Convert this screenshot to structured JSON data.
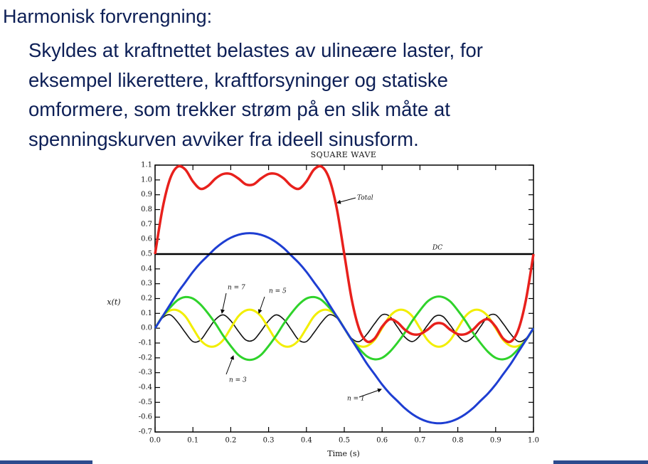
{
  "slide": {
    "title": "Harmonisk forvrengning:",
    "body": [
      "Skyldes at kraftnettet belastes av ulineære laster, for",
      "eksempel likerettere, kraftforsyninger og statiske",
      "omformere, som trekker strøm på en slik måte at",
      "spenningskurven avviker fra ideell sinusform."
    ]
  },
  "chart_data": {
    "type": "line",
    "title": "SQUARE WAVE",
    "x_label": "Time (s)",
    "y_label": "x(t)",
    "x": [
      0,
      0.02,
      0.04,
      0.06,
      0.08,
      0.1,
      0.12,
      0.14,
      0.16,
      0.18,
      0.2,
      0.22,
      0.24,
      0.26,
      0.28,
      0.3,
      0.32,
      0.34,
      0.36,
      0.38,
      0.4,
      0.42,
      0.44,
      0.46,
      0.48,
      0.5,
      0.52,
      0.54,
      0.56,
      0.58,
      0.6,
      0.62,
      0.64,
      0.66,
      0.68,
      0.7,
      0.72,
      0.74,
      0.76,
      0.78,
      0.8,
      0.82,
      0.84,
      0.86,
      0.88,
      0.9,
      0.92,
      0.94,
      0.96,
      0.98,
      1
    ],
    "series": [
      {
        "name": "n = 7",
        "color": "#111111",
        "values": [
          0,
          0.07,
          0.09,
          0.04,
          -0.03,
          -0.09,
          -0.08,
          -0.01,
          0.06,
          0.09,
          0.05,
          -0.02,
          -0.08,
          -0.08,
          -0.02,
          0.05,
          0.09,
          0.06,
          -0.01,
          -0.08,
          -0.09,
          -0.03,
          0.04,
          0.09,
          0.07,
          0,
          -0.07,
          -0.09,
          -0.04,
          0.03,
          0.09,
          0.08,
          0.01,
          -0.06,
          -0.09,
          -0.05,
          0.02,
          0.08,
          0.08,
          0.02,
          -0.05,
          -0.09,
          -0.06,
          0.01,
          0.08,
          0.09,
          0.03,
          -0.04,
          -0.09,
          -0.07,
          0
        ]
      },
      {
        "name": "n = 5",
        "color": "#f2ee00",
        "values": [
          0,
          0.08,
          0.12,
          0.12,
          0.08,
          0,
          -0.08,
          -0.12,
          -0.12,
          -0.08,
          0,
          0.08,
          0.12,
          0.12,
          0.08,
          0,
          -0.08,
          -0.12,
          -0.12,
          -0.08,
          0,
          0.08,
          0.12,
          0.12,
          0.08,
          0,
          -0.08,
          -0.12,
          -0.12,
          -0.08,
          0,
          0.08,
          0.12,
          0.12,
          0.08,
          0,
          -0.08,
          -0.12,
          -0.12,
          -0.08,
          0,
          0.08,
          0.12,
          0.12,
          0.08,
          0,
          -0.08,
          -0.12,
          -0.12,
          -0.08,
          0
        ]
      },
      {
        "name": "n = 3",
        "color": "#2fd32b",
        "values": [
          0,
          0.08,
          0.14,
          0.19,
          0.21,
          0.2,
          0.16,
          0.1,
          0.03,
          -0.05,
          -0.12,
          -0.18,
          -0.21,
          -0.21,
          -0.18,
          -0.12,
          -0.05,
          0.03,
          0.1,
          0.16,
          0.2,
          0.21,
          0.19,
          0.14,
          0.08,
          0,
          -0.08,
          -0.14,
          -0.19,
          -0.21,
          -0.2,
          -0.16,
          -0.1,
          -0.03,
          0.05,
          0.12,
          0.18,
          0.21,
          0.21,
          0.18,
          0.12,
          0.05,
          -0.03,
          -0.1,
          -0.16,
          -0.2,
          -0.21,
          -0.19,
          -0.14,
          -0.08,
          0
        ]
      },
      {
        "name": "n = 1",
        "color": "#1e3ed2",
        "values": [
          0,
          0.08,
          0.16,
          0.24,
          0.31,
          0.38,
          0.44,
          0.49,
          0.54,
          0.58,
          0.61,
          0.63,
          0.64,
          0.64,
          0.63,
          0.61,
          0.58,
          0.54,
          0.49,
          0.44,
          0.38,
          0.31,
          0.24,
          0.16,
          0.08,
          0,
          -0.08,
          -0.16,
          -0.24,
          -0.31,
          -0.38,
          -0.44,
          -0.49,
          -0.54,
          -0.58,
          -0.61,
          -0.63,
          -0.64,
          -0.64,
          -0.63,
          -0.61,
          -0.58,
          -0.54,
          -0.49,
          -0.44,
          -0.38,
          -0.31,
          -0.24,
          -0.16,
          -0.08,
          0
        ]
      },
      {
        "name": "DC",
        "color": "#000000",
        "values": [
          0.5,
          0.5,
          0.5,
          0.5,
          0.5,
          0.5,
          0.5,
          0.5,
          0.5,
          0.5,
          0.5,
          0.5,
          0.5,
          0.5,
          0.5,
          0.5,
          0.5,
          0.5,
          0.5,
          0.5,
          0.5,
          0.5,
          0.5,
          0.5,
          0.5,
          0.5,
          0.5,
          0.5,
          0.5,
          0.5,
          0.5,
          0.5,
          0.5,
          0.5,
          0.5,
          0.5,
          0.5,
          0.5,
          0.5,
          0.5,
          0.5,
          0.5,
          0.5,
          0.5,
          0.5,
          0.5,
          0.5,
          0.5,
          0.5,
          0.5,
          0.5
        ]
      },
      {
        "name": "Total",
        "color": "#e8201c",
        "values": [
          0.5,
          0.81,
          1.01,
          1.09,
          1.07,
          0.99,
          0.94,
          0.96,
          1.01,
          1.04,
          1.04,
          1.01,
          0.97,
          0.97,
          1.01,
          1.04,
          1.04,
          1.01,
          0.96,
          0.94,
          0.99,
          1.07,
          1.09,
          1.01,
          0.81,
          0.5,
          0.19,
          -0.01,
          -0.09,
          -0.07,
          0.01,
          0.06,
          0.04,
          -0.01,
          -0.04,
          -0.04,
          -0.01,
          0.03,
          0.03,
          -0.01,
          -0.04,
          -0.04,
          -0.01,
          0.04,
          0.06,
          0.01,
          -0.07,
          -0.09,
          -0.01,
          0.19,
          0.5
        ]
      }
    ],
    "xlim": [
      0,
      1
    ],
    "xticks": [
      {
        "value": 0,
        "label": "0.0"
      },
      0.1,
      0.2,
      0.3,
      0.4,
      0.5,
      0.6,
      0.7,
      0.8,
      0.9,
      {
        "value": 1,
        "label": "1.0"
      }
    ],
    "ylim": [
      -0.7,
      1.1
    ],
    "yticks": [
      -0.7,
      -0.6,
      -0.5,
      -0.4,
      -0.3,
      -0.2,
      -0.1,
      {
        "value": 0,
        "label": "0.0"
      },
      0.1,
      0.2,
      0.3,
      0.4,
      0.5,
      0.6,
      0.7,
      0.8,
      0.9,
      {
        "value": 1,
        "label": "1.0"
      },
      1.1
    ],
    "grid": false
  }
}
